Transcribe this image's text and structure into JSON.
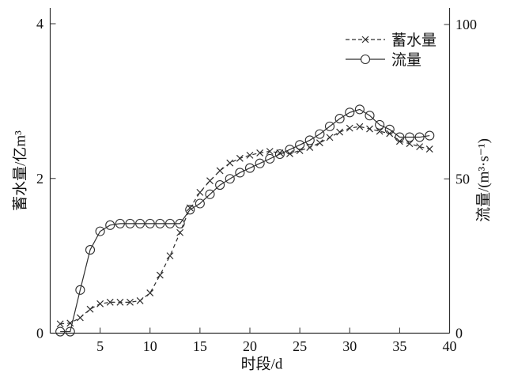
{
  "chart_data": {
    "type": "line",
    "title": "",
    "xlabel": "时段/d",
    "ylabel_left": "蓄水量/亿m³",
    "ylabel_right": "流量/(m³·s⁻¹)",
    "xlim": [
      0,
      40
    ],
    "ylim_left": [
      0,
      4
    ],
    "ylim_right": [
      0,
      100
    ],
    "xticks": [
      5,
      10,
      15,
      20,
      25,
      30,
      35,
      40
    ],
    "yticks_left": [
      0,
      2,
      4
    ],
    "yticks_right": [
      0,
      50,
      100
    ],
    "grid": false,
    "legend_position": "upper-right-inside",
    "line_color": "#2f2f2f",
    "background_color": "#ffffff",
    "x": [
      1,
      2,
      3,
      4,
      5,
      6,
      7,
      8,
      9,
      10,
      11,
      12,
      13,
      14,
      15,
      16,
      17,
      18,
      19,
      20,
      21,
      22,
      23,
      24,
      25,
      26,
      27,
      28,
      29,
      30,
      31,
      32,
      33,
      34,
      35,
      36,
      37,
      38
    ],
    "series": [
      {
        "name": "蓄水量",
        "axis": "left",
        "unit": "亿m³",
        "marker": "x",
        "linestyle": "dashed",
        "values": [
          0.12,
          0.13,
          0.2,
          0.31,
          0.38,
          0.4,
          0.4,
          0.4,
          0.42,
          0.52,
          0.75,
          1.0,
          1.3,
          1.62,
          1.82,
          1.97,
          2.1,
          2.2,
          2.26,
          2.3,
          2.33,
          2.35,
          2.33,
          2.32,
          2.36,
          2.4,
          2.46,
          2.53,
          2.6,
          2.65,
          2.67,
          2.64,
          2.61,
          2.58,
          2.48,
          2.45,
          2.41,
          2.38
        ]
      },
      {
        "name": "流量",
        "axis": "right",
        "unit": "m³·s⁻¹",
        "marker": "circle",
        "linestyle": "solid",
        "values": [
          0.5,
          0.5,
          14,
          27,
          33,
          35,
          35.5,
          35.5,
          35.5,
          35.5,
          35.5,
          35.5,
          35.5,
          40,
          42,
          45,
          48,
          50,
          52,
          53.5,
          55,
          56.5,
          58,
          59.5,
          61,
          62.5,
          64.5,
          67,
          69.5,
          71.5,
          72.5,
          70.5,
          67.5,
          66,
          63.5,
          63.5,
          63.5,
          64
        ]
      }
    ]
  }
}
